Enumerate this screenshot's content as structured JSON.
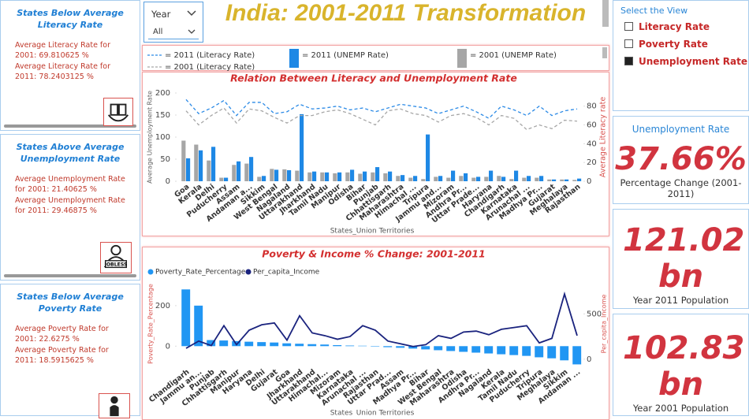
{
  "header": {
    "title": "India: 2001-2011 Transformation"
  },
  "slicer": {
    "label": "Year",
    "value": "All"
  },
  "cards": [
    {
      "title": "States Below Average Literacy Rate",
      "lines": [
        "Average Literacy Rate for 2001: 69.810625 %",
        "Average Literacy Rate for 2011: 78.2403125 %"
      ]
    },
    {
      "title": "States Above Average Unemployment Rate",
      "lines": [
        "Average Unemployment Rate for 2001: 21.40625 %",
        "Average Unemployment Rate for 2011: 29.46875 %"
      ],
      "icon_text": "JOBLESS"
    },
    {
      "title": "States Below Average Poverty Rate",
      "lines": [
        "Average Poverty Rate for 2001: 22.6275 %",
        "Average Poverty Rate for 2011: 18.5915625 %"
      ]
    }
  ],
  "view_selector": {
    "title": "Select the View",
    "options": [
      "Literacy Rate",
      "Poverty Rate",
      "Unemployment Rate"
    ],
    "selected": 2
  },
  "kpis": [
    {
      "title": "Unemployment Rate",
      "value": "37.66%",
      "label": "Percentage Change (2001-2011)"
    },
    {
      "value": "121.02 bn",
      "label": "Year 2011 Population"
    },
    {
      "value": "102.83 bn",
      "label": "Year 2001 Population"
    }
  ],
  "chart_data": [
    {
      "type": "combo",
      "title": "Relation Between Literacy and Unemployment Rate",
      "x_label": "States_Union Territories",
      "y_label": "Average Unemployment Rate",
      "y2_label": "Average Literacy rate",
      "legend_marker": "shape",
      "categories": [
        "Goa",
        "Kerala",
        "Delhi",
        "Puducherry",
        "Assam",
        "Andaman a...",
        "Sikkim",
        "West Bengal",
        "Nagaland",
        "Uttarakhand",
        "Jharkhand",
        "Tamil Nadu",
        "Manipur",
        "Odisha",
        "Bihar",
        "Punjab",
        "Chhattisgarh",
        "Maharashtra",
        "Himachal ...",
        "Tripura",
        "Jammu and...",
        "Mizoram",
        "Andhra Pr...",
        "Uttar Prade...",
        "Haryana",
        "Chandigarh",
        "Karnataka",
        "Arunachal ...",
        "Madhya Pr...",
        "Gujarat",
        "Meghalaya",
        "Rajasthan"
      ],
      "series": [
        {
          "name": "= 2011 (Literacy Rate)",
          "kind": "line",
          "dashed": true,
          "axis": "y2",
          "color": "#2b8ae6",
          "values": [
            87,
            72,
            78,
            86,
            70,
            84,
            84,
            72,
            74,
            82,
            77,
            78,
            80,
            76,
            78,
            74,
            78,
            82,
            80,
            78,
            72,
            76,
            80,
            74,
            67,
            80,
            76,
            70,
            80,
            70,
            75,
            77
          ]
        },
        {
          "name": "= 2011 (UNEMP Rate)",
          "kind": "bar",
          "color": "#1e88e5",
          "values": [
            52,
            70,
            78,
            8,
            45,
            55,
            12,
            26,
            25,
            152,
            22,
            20,
            20,
            26,
            22,
            32,
            22,
            14,
            12,
            106,
            12,
            24,
            18,
            10,
            24,
            10,
            24,
            12,
            12,
            4,
            4,
            6
          ]
        },
        {
          "name": "= 2001 (UNEMP Rate)",
          "kind": "bar",
          "color": "#a6a6a6",
          "values": [
            92,
            83,
            47,
            8,
            37,
            40,
            10,
            28,
            27,
            24,
            20,
            20,
            18,
            20,
            17,
            20,
            18,
            12,
            8,
            5,
            10,
            8,
            12,
            8,
            10,
            12,
            5,
            8,
            8,
            4,
            4,
            3
          ]
        },
        {
          "name": "= 2001 (Literacy Rate)",
          "kind": "line",
          "dashed": true,
          "axis": "y2",
          "color": "#a6a6a6",
          "values": [
            75,
            60,
            70,
            78,
            62,
            77,
            75,
            68,
            62,
            70,
            70,
            74,
            76,
            72,
            66,
            60,
            75,
            77,
            72,
            70,
            63,
            70,
            72,
            68,
            60,
            70,
            67,
            55,
            60,
            56,
            65,
            64
          ]
        }
      ],
      "ylim": [
        0,
        200
      ],
      "yticks": [
        0,
        50,
        100,
        150,
        200
      ],
      "y2lim": [
        0,
        94
      ],
      "y2ticks": [
        0,
        20,
        40,
        60,
        80
      ]
    },
    {
      "type": "combo",
      "title": "Poverty & Income % Change: 2001-2011",
      "x_label": "States_Union Territories",
      "y_label": "Poverty_Rate_Percentage",
      "y2_label": "Per_capita_Income",
      "legend_marker": "circle",
      "categories": [
        "Chandigarh",
        "Jammu an...",
        "Punjab",
        "Chhattisgarh",
        "Manipur",
        "Haryana",
        "Delhi",
        "Gujarat",
        "Goa",
        "Jharkhand",
        "Uttarakhand",
        "Himachal...",
        "Mizoram",
        "Karnataka",
        "Arunachal ...",
        "Rajasthan",
        "Uttar Prad...",
        "Assam",
        "Madhya Pr...",
        "Bihar",
        "West Bengal",
        "Maharashtra",
        "Odisha",
        "Andhra Pr...",
        "Nagaland",
        "Kerala",
        "Tamil Nadu",
        "Puducherry",
        "Tripura",
        "Meghalaya",
        "Sikkim",
        "Andaman ..."
      ],
      "series": [
        {
          "name": "Poverty_Rate_Percentage",
          "kind": "bar",
          "color": "#2196f3",
          "values": [
            280,
            200,
            30,
            28,
            25,
            22,
            20,
            18,
            14,
            12,
            10,
            8,
            5,
            3,
            2,
            -2,
            -5,
            -8,
            -12,
            -16,
            -20,
            -24,
            -28,
            -32,
            -36,
            -40,
            -44,
            -48,
            -55,
            -60,
            -70,
            -90
          ]
        },
        {
          "name": "Per_capita_Income",
          "kind": "line",
          "dashed": false,
          "axis": "y2",
          "color": "#1a237e",
          "values": [
            120,
            200,
            150,
            370,
            160,
            320,
            380,
            400,
            210,
            480,
            290,
            260,
            220,
            250,
            370,
            320,
            200,
            170,
            140,
            160,
            260,
            230,
            300,
            310,
            270,
            330,
            350,
            370,
            180,
            230,
            720,
            260
          ]
        }
      ],
      "ylim": [
        -100,
        320
      ],
      "yticks": [
        0,
        200
      ],
      "y2lim": [
        -80,
        860
      ],
      "y2ticks": [
        0,
        500
      ]
    }
  ]
}
